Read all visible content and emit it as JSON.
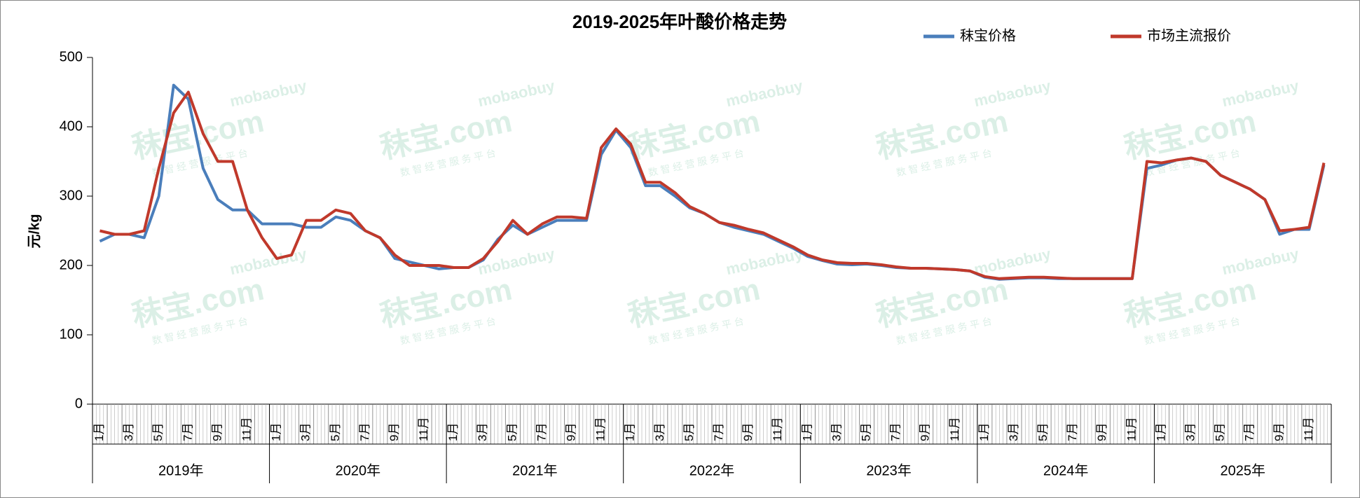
{
  "chart_data": {
    "type": "line",
    "title": "2019-2025年叶酸价格走势",
    "y_label": "元/kg",
    "watermark": {
      "brand": "秣宝.com",
      "site": "mobaobuy",
      "slogan": "数 智 经 营 服 务 平 台"
    },
    "categories": [
      "1月",
      null,
      "3月",
      null,
      "5月",
      null,
      "7月",
      null,
      "9月",
      null,
      "11月",
      null,
      "1月",
      null,
      "3月",
      null,
      "5月",
      null,
      "7月",
      null,
      "9月",
      null,
      "11月",
      null,
      "1月",
      null,
      "3月",
      null,
      "5月",
      null,
      "7月",
      null,
      "9月",
      null,
      "11月",
      null,
      "1月",
      null,
      "3月",
      null,
      "5月",
      null,
      "7月",
      null,
      "9月",
      null,
      "11月",
      null,
      "1月",
      null,
      "3月",
      null,
      "5月",
      null,
      "7月",
      null,
      "9月",
      null,
      "11月",
      null,
      "1月",
      null,
      "3月",
      null,
      "5月",
      null,
      "7月",
      null,
      "9月",
      null,
      "11月",
      null,
      "1月",
      null,
      "3月",
      null,
      "5月",
      null,
      "7月",
      null,
      "9月",
      null,
      "11月",
      null
    ],
    "x_groups": [
      {
        "label": "2019年",
        "span": 12
      },
      {
        "label": "2020年",
        "span": 12
      },
      {
        "label": "2021年",
        "span": 12
      },
      {
        "label": "2022年",
        "span": 12
      },
      {
        "label": "2023年",
        "span": 12
      },
      {
        "label": "2024年",
        "span": 12
      },
      {
        "label": "2025年",
        "span": 12
      }
    ],
    "series": [
      {
        "name": "秣宝价格",
        "color": "#4a7ebb",
        "values": [
          235,
          245,
          245,
          240,
          300,
          460,
          440,
          340,
          295,
          280,
          280,
          260,
          260,
          260,
          255,
          255,
          270,
          265,
          250,
          240,
          210,
          205,
          200,
          195,
          197,
          197,
          208,
          238,
          258,
          245,
          255,
          265,
          265,
          265,
          360,
          395,
          370,
          315,
          315,
          300,
          283,
          275,
          262,
          255,
          250,
          245,
          235,
          225,
          213,
          207,
          202,
          201,
          202,
          200,
          197,
          196,
          196,
          195,
          194,
          192,
          183,
          180,
          181,
          182,
          182,
          181,
          181,
          181,
          181,
          181,
          181,
          340,
          345,
          352,
          355,
          350,
          330,
          320,
          310,
          295,
          245,
          252,
          252,
          345
        ]
      },
      {
        "name": "市场主流报价",
        "color": "#c0392b",
        "values": [
          250,
          245,
          245,
          250,
          340,
          420,
          450,
          390,
          350,
          350,
          280,
          240,
          210,
          215,
          265,
          265,
          280,
          275,
          250,
          240,
          215,
          200,
          200,
          200,
          197,
          197,
          210,
          235,
          265,
          245,
          260,
          270,
          270,
          268,
          370,
          397,
          375,
          320,
          320,
          305,
          285,
          275,
          262,
          258,
          252,
          247,
          237,
          227,
          215,
          208,
          204,
          203,
          203,
          201,
          198,
          196,
          196,
          195,
          194,
          192,
          184,
          181,
          182,
          183,
          183,
          182,
          181,
          181,
          181,
          181,
          181,
          350,
          348,
          352,
          355,
          350,
          330,
          320,
          310,
          295,
          250,
          252,
          255,
          348
        ]
      }
    ],
    "ylim": [
      0,
      500
    ],
    "yticks": [
      0,
      100,
      200,
      300,
      400,
      500
    ],
    "grid": false
  }
}
